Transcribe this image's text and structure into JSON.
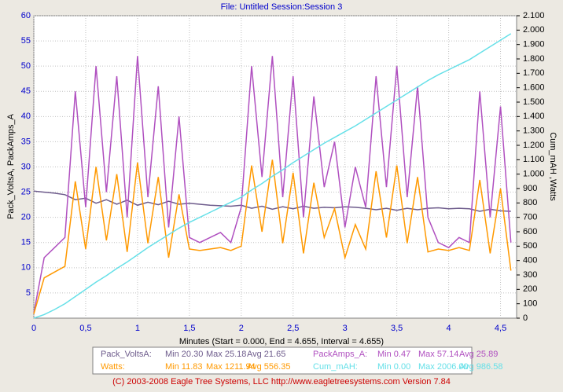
{
  "chart_data": {
    "type": "line",
    "title": "File: Untitled   Session:Session 3",
    "xlabel": "Minutes (Start = 0.000,  End = 4.655,  Interval =  4.655)",
    "ylabel": "Pack_VoltsA, PackAmps_A",
    "y2label": "Cum_mAH ,Watts",
    "footer": "(C) 2003-2008 Eagle Tree Systems, LLC     http://www.eagletreesystems.com     Version 7.84",
    "grid": true,
    "xlim": [
      0,
      4.655
    ],
    "ylim": [
      0,
      60
    ],
    "y2lim": [
      0,
      2100
    ],
    "xticks": [
      0,
      {
        "value": 0.5,
        "label": "0,5"
      },
      1,
      {
        "value": 1.5,
        "label": "1,5"
      },
      2,
      {
        "value": 2.5,
        "label": "2,5"
      },
      3,
      {
        "value": 3.5,
        "label": "3,5"
      },
      4,
      {
        "value": 4.5,
        "label": "4,5"
      }
    ],
    "yticks": [
      5,
      10,
      15,
      20,
      25,
      30,
      35,
      40,
      45,
      50,
      55,
      60
    ],
    "y2ticks": [
      0,
      100,
      200,
      300,
      400,
      500,
      600,
      700,
      800,
      900,
      {
        "value": 1000,
        "label": "1.000"
      },
      {
        "value": 1100,
        "label": "1.100"
      },
      {
        "value": 1200,
        "label": "1.200"
      },
      {
        "value": 1300,
        "label": "1.300"
      },
      {
        "value": 1400,
        "label": "1.400"
      },
      {
        "value": 1500,
        "label": "1.500"
      },
      {
        "value": 1600,
        "label": "1.600"
      },
      {
        "value": 1700,
        "label": "1.700"
      },
      {
        "value": 1800,
        "label": "1.800"
      },
      {
        "value": 1900,
        "label": "1.900"
      },
      {
        "value": 2000,
        "label": "2.000"
      },
      {
        "value": 2100,
        "label": "2.100"
      }
    ],
    "x": [
      0,
      0.1,
      0.2,
      0.3,
      0.4,
      0.5,
      0.6,
      0.7,
      0.8,
      0.9,
      1,
      1.1,
      1.2,
      1.3,
      1.4,
      1.5,
      1.6,
      1.7,
      1.8,
      1.9,
      2,
      2.1,
      2.2,
      2.3,
      2.4,
      2.5,
      2.6,
      2.7,
      2.8,
      2.9,
      3,
      3.1,
      3.2,
      3.3,
      3.4,
      3.5,
      3.6,
      3.7,
      3.8,
      3.9,
      4,
      4.1,
      4.2,
      4.3,
      4.4,
      4.5,
      4.6
    ],
    "series": [
      {
        "name": "Pack_VoltsA:",
        "color": "#6e5c8c",
        "stats": [
          "Min 20.30",
          "Max 25.18",
          "Avg 21.65"
        ],
        "values": [
          25.2,
          25,
          24.8,
          24.5,
          23.5,
          23.8,
          22.8,
          23.5,
          22.6,
          23.4,
          22.4,
          23,
          22.5,
          23.2,
          22.6,
          22.8,
          22.6,
          22.4,
          22.3,
          22.2,
          22.4,
          21.8,
          22.2,
          21.6,
          22.1,
          21.7,
          22.2,
          21.8,
          22,
          21.9,
          22.1,
          22,
          21.8,
          21.5,
          21.8,
          21.4,
          21.8,
          21.5,
          21.8,
          21.9,
          21.7,
          21.8,
          21.7,
          21.2,
          21.6,
          21.3,
          21.2
        ]
      },
      {
        "name": "PackAmps_A:",
        "color": "#b050c0",
        "stats": [
          "Min 0.47",
          "Max 57.14",
          "Avg 25.89"
        ],
        "values": [
          1,
          12,
          14,
          16,
          45,
          22,
          50,
          25,
          48,
          20,
          52,
          24,
          46,
          18,
          40,
          16,
          15,
          16,
          17,
          15,
          22,
          50,
          28,
          52,
          24,
          48,
          20,
          44,
          26,
          35,
          18,
          30,
          22,
          48,
          26,
          50,
          24,
          46,
          20,
          15,
          14,
          16,
          15,
          45,
          20,
          42,
          15
        ]
      },
      {
        "name": "Watts:",
        "color": "#ff9900",
        "axis": "y2",
        "stats": [
          "Min 11.83",
          "Max 1211.94",
          "Avg 556.35"
        ],
        "values": [
          30,
          280,
          320,
          360,
          950,
          480,
          1050,
          540,
          1000,
          460,
          1080,
          520,
          980,
          420,
          860,
          480,
          470,
          480,
          490,
          470,
          500,
          1060,
          600,
          1100,
          520,
          1010,
          450,
          940,
          560,
          760,
          420,
          650,
          480,
          1020,
          560,
          1060,
          520,
          980,
          460,
          480,
          470,
          490,
          470,
          960,
          450,
          900,
          330
        ]
      },
      {
        "name": "Cum_mAH:",
        "color": "#66e0e8",
        "axis": "y2",
        "stats": [
          "Min 0.00",
          "Max 2006.00",
          "Avg 986.58"
        ],
        "values": [
          0,
          25,
          60,
          100,
          150,
          200,
          250,
          295,
          345,
          390,
          440,
          490,
          535,
          580,
          625,
          665,
          700,
          735,
          770,
          805,
          840,
          890,
          935,
          985,
          1030,
          1080,
          1125,
          1170,
          1215,
          1255,
          1295,
          1335,
          1380,
          1425,
          1470,
          1515,
          1560,
          1605,
          1650,
          1690,
          1725,
          1760,
          1795,
          1840,
          1885,
          1930,
          1975
        ]
      }
    ]
  }
}
